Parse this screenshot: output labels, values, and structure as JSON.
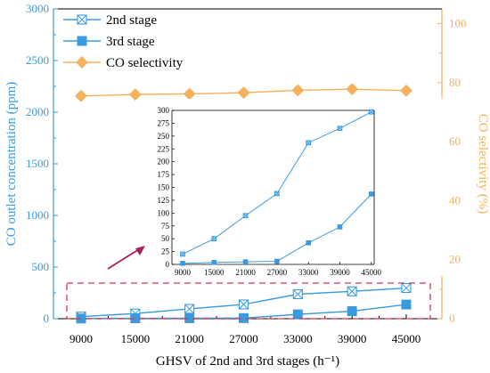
{
  "colors": {
    "left_axis": "#3a9ae0",
    "right_axis": "#f5b15c",
    "stage2": "#3a9ae0",
    "stage3": "#3a9ae0",
    "selectivity": "#f5b15c",
    "highlight_box": "#d6334e",
    "arrow": "#a5225a"
  },
  "chart_data": [
    {
      "type": "line",
      "xlabel": "GHSV of 2nd and 3rd stages (h⁻¹)",
      "ylabel": "CO outlet concentration (ppm)",
      "ylabel_right": "CO selectivity (%)",
      "categories": [
        "9000",
        "15000",
        "21000",
        "27000",
        "33000",
        "39000",
        "45000"
      ],
      "ylim": [
        0,
        3000
      ],
      "yticks": [
        "0",
        "500",
        "1000",
        "1500",
        "2000",
        "2500",
        "3000"
      ],
      "ylim_right": [
        0,
        105
      ],
      "yticks_right": [
        "0",
        "20",
        "40",
        "60",
        "80",
        "100"
      ],
      "legend_position": "top-left",
      "series": [
        {
          "name": "2nd stage",
          "axis": "left",
          "marker": "square-x",
          "values": [
            20,
            50,
            95,
            138,
            237,
            265,
            297
          ]
        },
        {
          "name": "3rd stage",
          "axis": "left",
          "marker": "square",
          "values": [
            2,
            4,
            5,
            6,
            42,
            73,
            137
          ]
        },
        {
          "name": "CO selectivity",
          "axis": "right",
          "marker": "diamond",
          "values": [
            75.5,
            76,
            76.2,
            76.6,
            77.4,
            77.8,
            77.3
          ]
        }
      ]
    },
    {
      "type": "line",
      "inset": true,
      "categories": [
        "9000",
        "15000",
        "21000",
        "27000",
        "33000",
        "39000",
        "45000"
      ],
      "ylim": [
        0,
        300
      ],
      "yticks": [
        "0",
        "25",
        "50",
        "75",
        "100",
        "125",
        "150",
        "175",
        "200",
        "225",
        "250",
        "275",
        "300"
      ],
      "series": [
        {
          "name": "2nd stage",
          "marker": "square-x",
          "values": [
            20,
            50,
            95,
            138,
            237,
            265,
            297
          ]
        },
        {
          "name": "3rd stage",
          "marker": "square",
          "values": [
            2,
            4,
            5,
            6,
            42,
            73,
            137
          ]
        }
      ]
    }
  ]
}
